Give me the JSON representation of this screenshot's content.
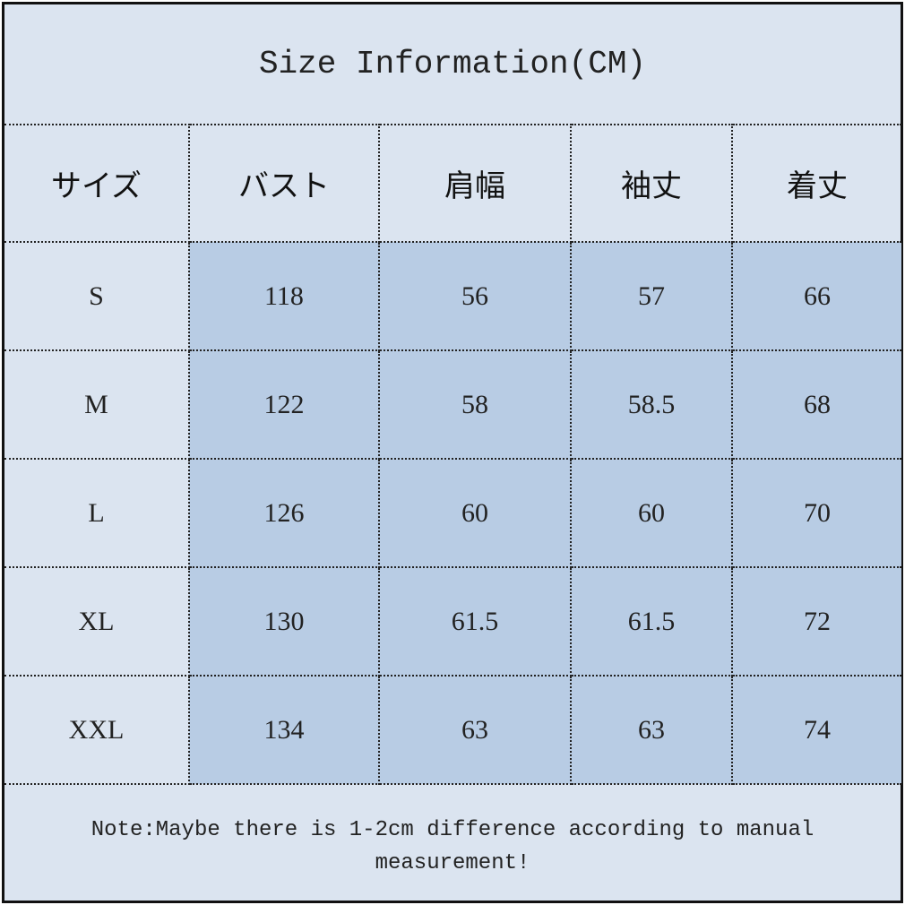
{
  "title": "Size Information(CM)",
  "headers": [
    "サイズ",
    "バスト",
    "肩幅",
    "袖丈",
    "着丈"
  ],
  "rows": [
    [
      "S",
      "118",
      "56",
      "57",
      "66"
    ],
    [
      "M",
      "122",
      "58",
      "58.5",
      "68"
    ],
    [
      "L",
      "126",
      "60",
      "60",
      "70"
    ],
    [
      "XL",
      "130",
      "61.5",
      "61.5",
      "72"
    ],
    [
      "XXL",
      "134",
      "63",
      "63",
      "74"
    ]
  ],
  "note": "Note:Maybe there is 1-2cm difference according to manual measurement!",
  "colors": {
    "background": "#dbe4f0",
    "data_cell": "#b8cce4",
    "border": "#111111"
  }
}
